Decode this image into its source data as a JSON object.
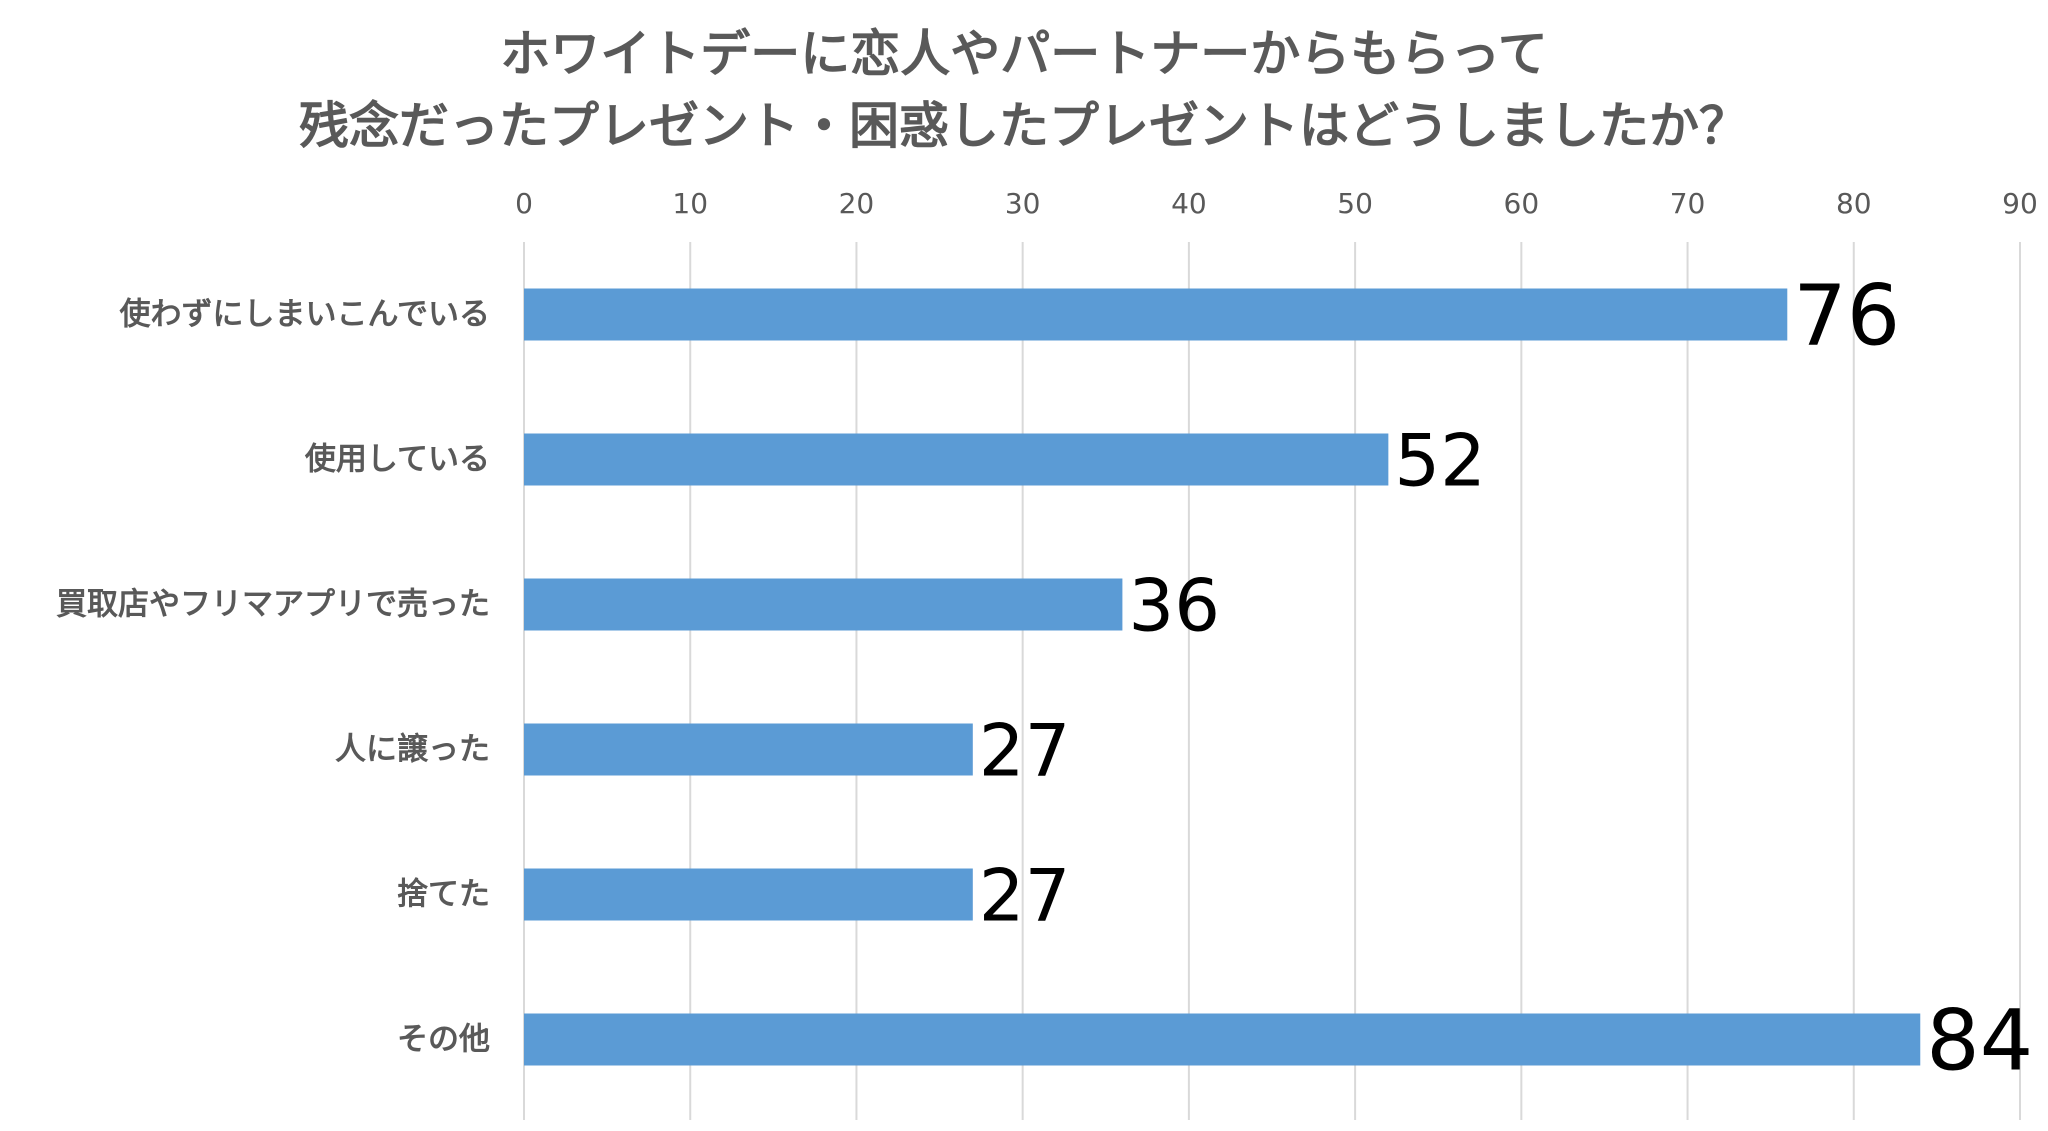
{
  "chart_data": {
    "type": "bar",
    "orientation": "horizontal",
    "title_lines": [
      "ホワイトデーに恋人やパートナーからもらって",
      "残念だったプレゼント・困惑したプレゼントはどうしましたか？"
    ],
    "categories": [
      "使わずにしまいこんでいる",
      "使用している",
      "買取店やフリマアプリで売った",
      "人に譲った",
      "捨てた",
      "その他"
    ],
    "values": [
      76,
      52,
      36,
      27,
      27,
      84
    ],
    "data_labels": [
      "76",
      "52",
      "36",
      "27",
      "27",
      "84"
    ],
    "xlim": [
      0,
      90
    ],
    "x_ticks": [
      0,
      10,
      20,
      30,
      40,
      50,
      60,
      70,
      80,
      90
    ],
    "x_axis_position": "top",
    "grid": true,
    "legend": "none",
    "xlabel": "",
    "ylabel": "",
    "bar_color": "#5B9BD5",
    "grid_color": "#D9D9D9",
    "text_color": "#595959",
    "label_color": "#000000"
  }
}
